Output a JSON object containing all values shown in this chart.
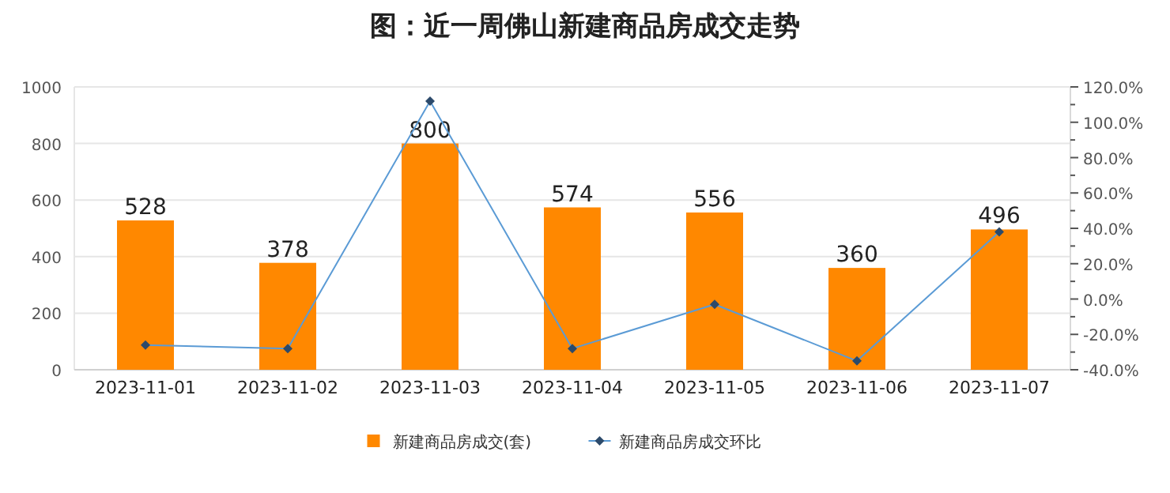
{
  "chart_data": {
    "type": "bar",
    "title": "图：近一周佛山新建商品房成交走势",
    "categories": [
      "2023-11-01",
      "2023-11-02",
      "2023-11-03",
      "2023-11-04",
      "2023-11-05",
      "2023-11-06",
      "2023-11-07"
    ],
    "series": [
      {
        "name": "新建商品房成交(套)",
        "color": "#ff8800",
        "values": [
          528,
          378,
          800,
          574,
          556,
          360,
          496
        ],
        "value_labels": [
          "528",
          "378",
          "800",
          "574",
          "556",
          "360",
          "496"
        ]
      },
      {
        "name": "新建商品房成交环比",
        "type": "line",
        "axis": "y2",
        "color": "#5b9bd5",
        "marker": "diamond",
        "values": [
          -26,
          -28,
          112,
          -28,
          -3,
          -35,
          38
        ]
      }
    ],
    "ylim": [
      0,
      1000
    ],
    "yticks": [
      0,
      200,
      400,
      600,
      800,
      1000
    ],
    "y2lim": [
      -40,
      120
    ],
    "y2ticks": [
      {
        "value": -40,
        "label": "-40.0%"
      },
      {
        "value": -30,
        "label": null
      },
      {
        "value": -20,
        "label": "-20.0%"
      },
      {
        "value": -10,
        "label": null
      },
      {
        "value": 0,
        "label": "0.0%"
      },
      {
        "value": 10,
        "label": null
      },
      {
        "value": 20,
        "label": "20.0%"
      },
      {
        "value": 30,
        "label": null
      },
      {
        "value": 40,
        "label": "40.0%"
      },
      {
        "value": 50,
        "label": null
      },
      {
        "value": 60,
        "label": "60.0%"
      },
      {
        "value": 70,
        "label": null
      },
      {
        "value": 80,
        "label": "80.0%"
      },
      {
        "value": 90,
        "label": null
      },
      {
        "value": 100,
        "label": "100.0%"
      },
      {
        "value": 110,
        "label": null
      },
      {
        "value": 120,
        "label": "120.0%"
      }
    ],
    "grid": "y",
    "legend": "bottom"
  }
}
